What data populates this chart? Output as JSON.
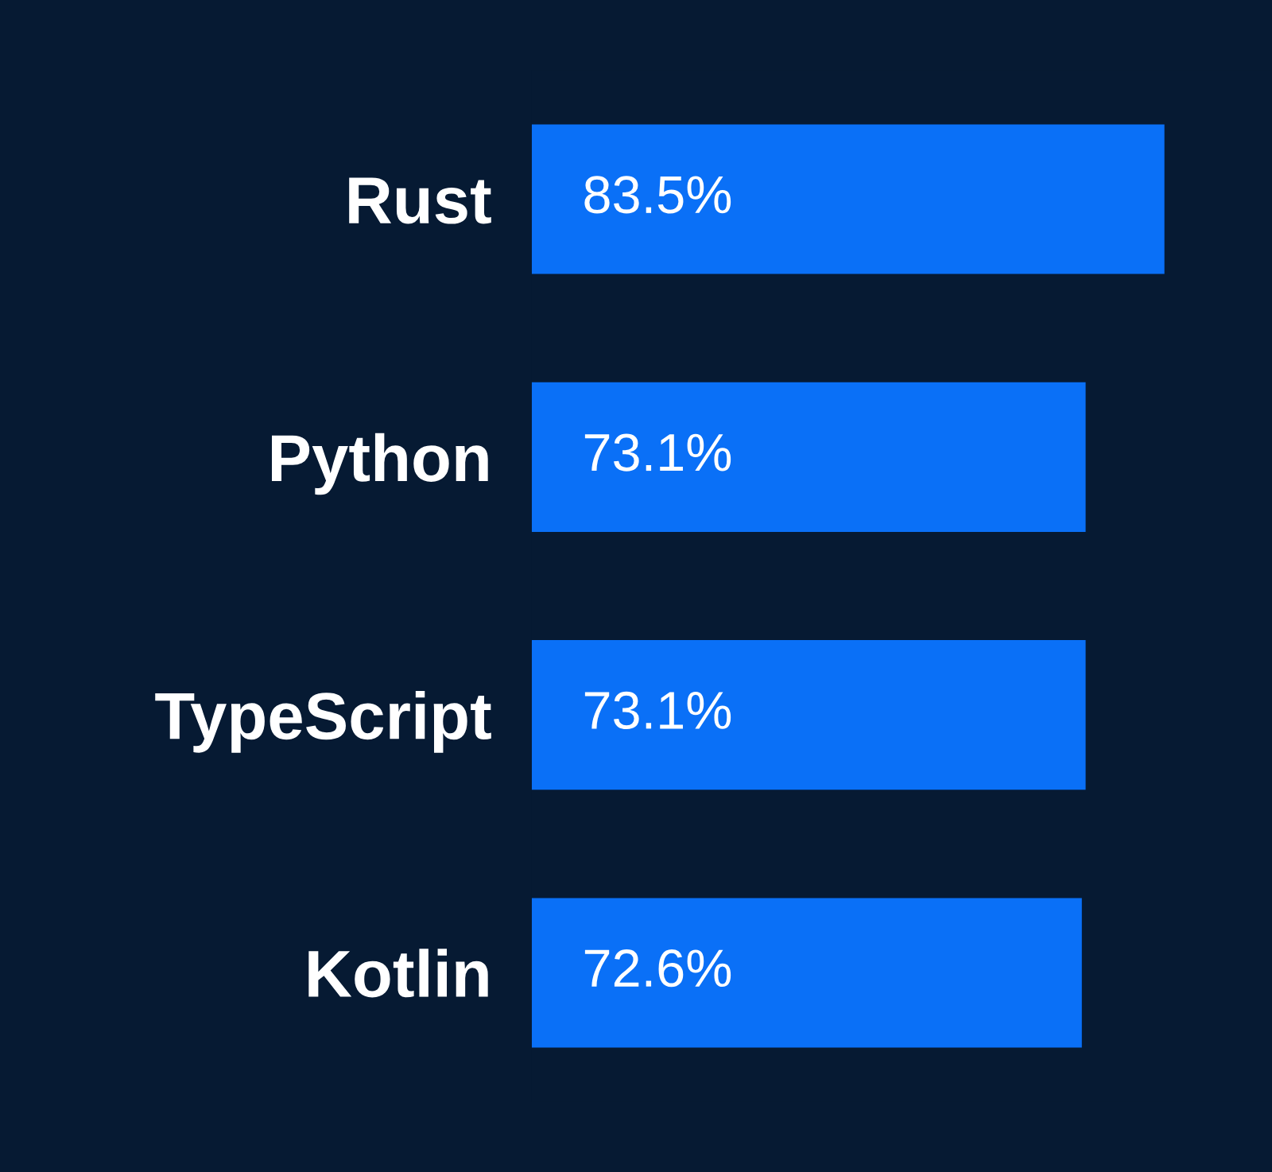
{
  "chart_data": {
    "type": "bar",
    "orientation": "horizontal",
    "categories": [
      "Rust",
      "Python",
      "TypeScript",
      "Kotlin"
    ],
    "values": [
      83.5,
      73.1,
      73.1,
      72.6
    ],
    "value_labels": [
      "83.5%",
      "73.1%",
      "73.1%",
      "72.6%"
    ],
    "color": "#0a70f7",
    "grid": false
  }
}
